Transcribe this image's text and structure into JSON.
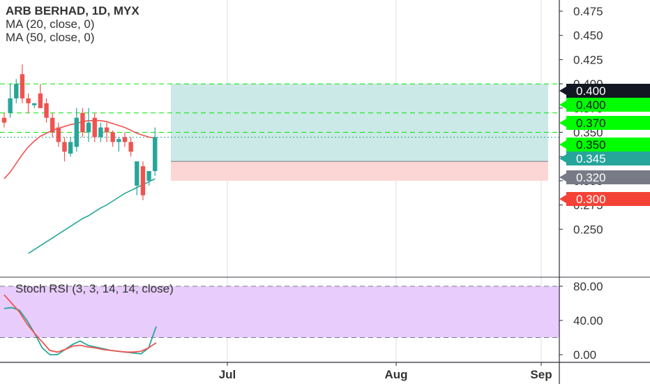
{
  "header": {
    "title": "ARB BERHAD, 1D, MYX",
    "ma_fast": "MA (20, close, 0)",
    "ma_slow": "MA (50, close, 0)"
  },
  "stoch": {
    "label": "Stoch RSI (3, 3, 14, 14, close)"
  },
  "colors": {
    "up": "#26a69a",
    "down": "#ef5350",
    "ma20": "#ef5350",
    "ma50": "#26a69a",
    "profit_zone": "#cbe9e6",
    "loss_zone": "#fcd6d5",
    "band": "#e8ccfb",
    "stoch_k": "#26a69a",
    "stoch_d": "#ef5350",
    "level_line": "#00e600",
    "label_green": "#00ff00",
    "label_red": "#f44336",
    "label_gray": "#787b86",
    "label_teal": "#26a69a",
    "label_dark": "#131722"
  },
  "chart_data": [
    {
      "type": "candlestick",
      "title": "ARB BERHAD, 1D, MYX",
      "ylim": [
        0.23,
        0.48
      ],
      "y_ticks": [
        "0.475",
        "0.450",
        "0.425",
        "0.400",
        "0.375",
        "0.350",
        "0.325",
        "0.300",
        "0.275",
        "0.250"
      ],
      "x_ticks": [
        "Jul",
        "Aug",
        "Sep"
      ],
      "candles": [
        {
          "o": 0.365,
          "h": 0.37,
          "l": 0.355,
          "c": 0.36
        },
        {
          "o": 0.37,
          "h": 0.4,
          "l": 0.365,
          "c": 0.385
        },
        {
          "o": 0.385,
          "h": 0.405,
          "l": 0.38,
          "c": 0.4
        },
        {
          "o": 0.41,
          "h": 0.42,
          "l": 0.38,
          "c": 0.385
        },
        {
          "o": 0.385,
          "h": 0.39,
          "l": 0.37,
          "c": 0.38
        },
        {
          "o": 0.378,
          "h": 0.38,
          "l": 0.375,
          "c": 0.38
        },
        {
          "o": 0.39,
          "h": 0.4,
          "l": 0.375,
          "c": 0.375
        },
        {
          "o": 0.38,
          "h": 0.385,
          "l": 0.36,
          "c": 0.365
        },
        {
          "o": 0.365,
          "h": 0.37,
          "l": 0.345,
          "c": 0.35
        },
        {
          "o": 0.355,
          "h": 0.36,
          "l": 0.335,
          "c": 0.34
        },
        {
          "o": 0.34,
          "h": 0.345,
          "l": 0.32,
          "c": 0.33
        },
        {
          "o": 0.328,
          "h": 0.345,
          "l": 0.325,
          "c": 0.34
        },
        {
          "o": 0.335,
          "h": 0.375,
          "l": 0.33,
          "c": 0.365
        },
        {
          "o": 0.37,
          "h": 0.375,
          "l": 0.345,
          "c": 0.35
        },
        {
          "o": 0.35,
          "h": 0.375,
          "l": 0.34,
          "c": 0.36
        },
        {
          "o": 0.365,
          "h": 0.37,
          "l": 0.34,
          "c": 0.345
        },
        {
          "o": 0.345,
          "h": 0.36,
          "l": 0.34,
          "c": 0.355
        },
        {
          "o": 0.355,
          "h": 0.36,
          "l": 0.34,
          "c": 0.35
        },
        {
          "o": 0.35,
          "h": 0.352,
          "l": 0.335,
          "c": 0.34
        },
        {
          "o": 0.34,
          "h": 0.345,
          "l": 0.33,
          "c": 0.343
        },
        {
          "o": 0.345,
          "h": 0.35,
          "l": 0.335,
          "c": 0.34
        },
        {
          "o": 0.34,
          "h": 0.345,
          "l": 0.325,
          "c": 0.33
        },
        {
          "o": 0.295,
          "h": 0.32,
          "l": 0.285,
          "c": 0.32
        },
        {
          "o": 0.315,
          "h": 0.32,
          "l": 0.28,
          "c": 0.285
        },
        {
          "o": 0.3,
          "h": 0.31,
          "l": 0.295,
          "c": 0.31
        },
        {
          "o": 0.31,
          "h": 0.355,
          "l": 0.305,
          "c": 0.345
        }
      ],
      "ma20": [
        0.302,
        0.309,
        0.318,
        0.327,
        0.335,
        0.341,
        0.346,
        0.349,
        0.352,
        0.354,
        0.356,
        0.358,
        0.359,
        0.361,
        0.362,
        0.362,
        0.362,
        0.361,
        0.359,
        0.357,
        0.355,
        0.352,
        0.349,
        0.347,
        0.345,
        0.344
      ],
      "ma50": [
        null,
        null,
        null,
        null,
        0.225,
        0.229,
        0.233,
        0.237,
        0.241,
        0.245,
        0.249,
        0.253,
        0.257,
        0.261,
        0.264,
        0.268,
        0.272,
        0.275,
        0.279,
        0.283,
        0.287,
        0.29,
        0.293,
        0.296,
        0.299,
        0.302
      ],
      "position": {
        "entry": 0.32,
        "target": 0.4,
        "stop": 0.3,
        "profit_range": [
          0.32,
          0.4
        ],
        "loss_range": [
          0.3,
          0.32
        ]
      },
      "horizontal_levels": [
        0.4,
        0.37,
        0.35
      ],
      "last_price": 0.345,
      "price_labels": [
        {
          "value": "0.400",
          "kind": "dark"
        },
        {
          "value": "0.400",
          "kind": "green"
        },
        {
          "value": "0.370",
          "kind": "green"
        },
        {
          "value": "0.350",
          "kind": "green"
        },
        {
          "value": "0.345",
          "kind": "teal"
        },
        {
          "value": "0.320",
          "kind": "gray"
        },
        {
          "value": "0.300",
          "kind": "red"
        }
      ],
      "grid": true
    },
    {
      "type": "line",
      "title": "Stoch RSI (3, 3, 14, 14, close)",
      "ylim": [
        0,
        100
      ],
      "y_ticks": [
        "80.00",
        "40.00",
        "0.00"
      ],
      "band": [
        20,
        80
      ],
      "series": [
        {
          "name": "K",
          "values": [
            54,
            55,
            52,
            40,
            25,
            8,
            0,
            0,
            6,
            12,
            16,
            11,
            9,
            7,
            5,
            4,
            3,
            2,
            1,
            8,
            33
          ]
        },
        {
          "name": "D",
          "values": [
            70,
            60,
            50,
            36,
            25,
            15,
            5,
            3,
            6,
            10,
            11,
            9,
            8,
            6,
            5,
            4,
            3,
            3,
            4,
            8,
            14
          ]
        }
      ]
    }
  ]
}
